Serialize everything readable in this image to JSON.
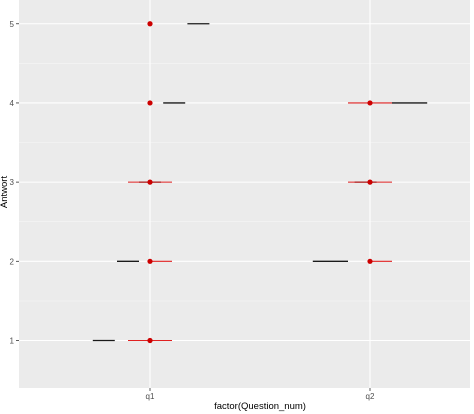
{
  "chart_data": {
    "type": "scatter",
    "title": "",
    "xlabel": "factor(Question_num)",
    "ylabel": "Antwort",
    "categories": [
      "q1",
      "q2"
    ],
    "y_ticks": [
      1,
      2,
      3,
      4,
      5
    ],
    "ylim": [
      0.4,
      5.3
    ],
    "grid": true,
    "colors": {
      "panel": "#ebebeb",
      "grid_major": "#ffffff",
      "grid_minor": "#f5f5f5",
      "point": "#cc0000",
      "red_segment": "#e02020",
      "black_segment": "#1a1a1a"
    },
    "points": [
      {
        "x": "q1",
        "y": 1
      },
      {
        "x": "q1",
        "y": 2
      },
      {
        "x": "q1",
        "y": 3
      },
      {
        "x": "q1",
        "y": 4
      },
      {
        "x": "q1",
        "y": 5
      },
      {
        "x": "q2",
        "y": 2
      },
      {
        "x": "q2",
        "y": 3
      },
      {
        "x": "q2",
        "y": 4
      }
    ],
    "red_segments": [
      {
        "y": 1,
        "x_from": 0.9,
        "x_to": 1.1
      },
      {
        "y": 2,
        "x_from": 1.0,
        "x_to": 1.1
      },
      {
        "y": 3,
        "x_from": 0.9,
        "x_to": 1.1
      },
      {
        "y": 2,
        "x_from": 2.0,
        "x_to": 2.1
      },
      {
        "y": 3,
        "x_from": 1.9,
        "x_to": 2.1
      },
      {
        "y": 4,
        "x_from": 1.9,
        "x_to": 2.1
      }
    ],
    "black_segments": [
      {
        "y": 1,
        "x_from": 0.74,
        "x_to": 0.84
      },
      {
        "y": 2,
        "x_from": 0.85,
        "x_to": 0.95
      },
      {
        "y": 3,
        "x_from": 0.95,
        "x_to": 1.05
      },
      {
        "y": 4,
        "x_from": 1.06,
        "x_to": 1.16
      },
      {
        "y": 5,
        "x_from": 1.17,
        "x_to": 1.27
      },
      {
        "y": 2,
        "x_from": 1.74,
        "x_to": 1.9
      },
      {
        "y": 3,
        "x_from": 1.93,
        "x_to": 2.03
      },
      {
        "y": 4,
        "x_from": 2.1,
        "x_to": 2.26
      }
    ]
  }
}
